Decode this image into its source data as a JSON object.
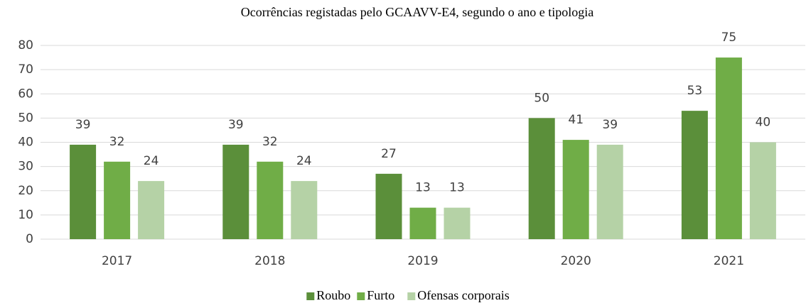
{
  "chart_data": {
    "type": "bar",
    "title": "Ocorrências registadas pelo GCAAVV-E4, segundo o ano e tipologia",
    "categories": [
      "2017",
      "2018",
      "2019",
      "2020",
      "2021"
    ],
    "series": [
      {
        "name": "Roubo",
        "color": "#5b8f3a",
        "values": [
          39,
          39,
          27,
          50,
          53
        ]
      },
      {
        "name": "Furto",
        "color": "#70ad47",
        "values": [
          32,
          32,
          13,
          41,
          75
        ]
      },
      {
        "name": "Ofensas corporais",
        "color": "#b5d2a6",
        "values": [
          24,
          24,
          13,
          39,
          40
        ]
      }
    ],
    "ylim": [
      0,
      80
    ],
    "yticks": [
      0,
      10,
      20,
      30,
      40,
      50,
      60,
      70,
      80
    ],
    "grid": true,
    "legend": "bottom"
  }
}
